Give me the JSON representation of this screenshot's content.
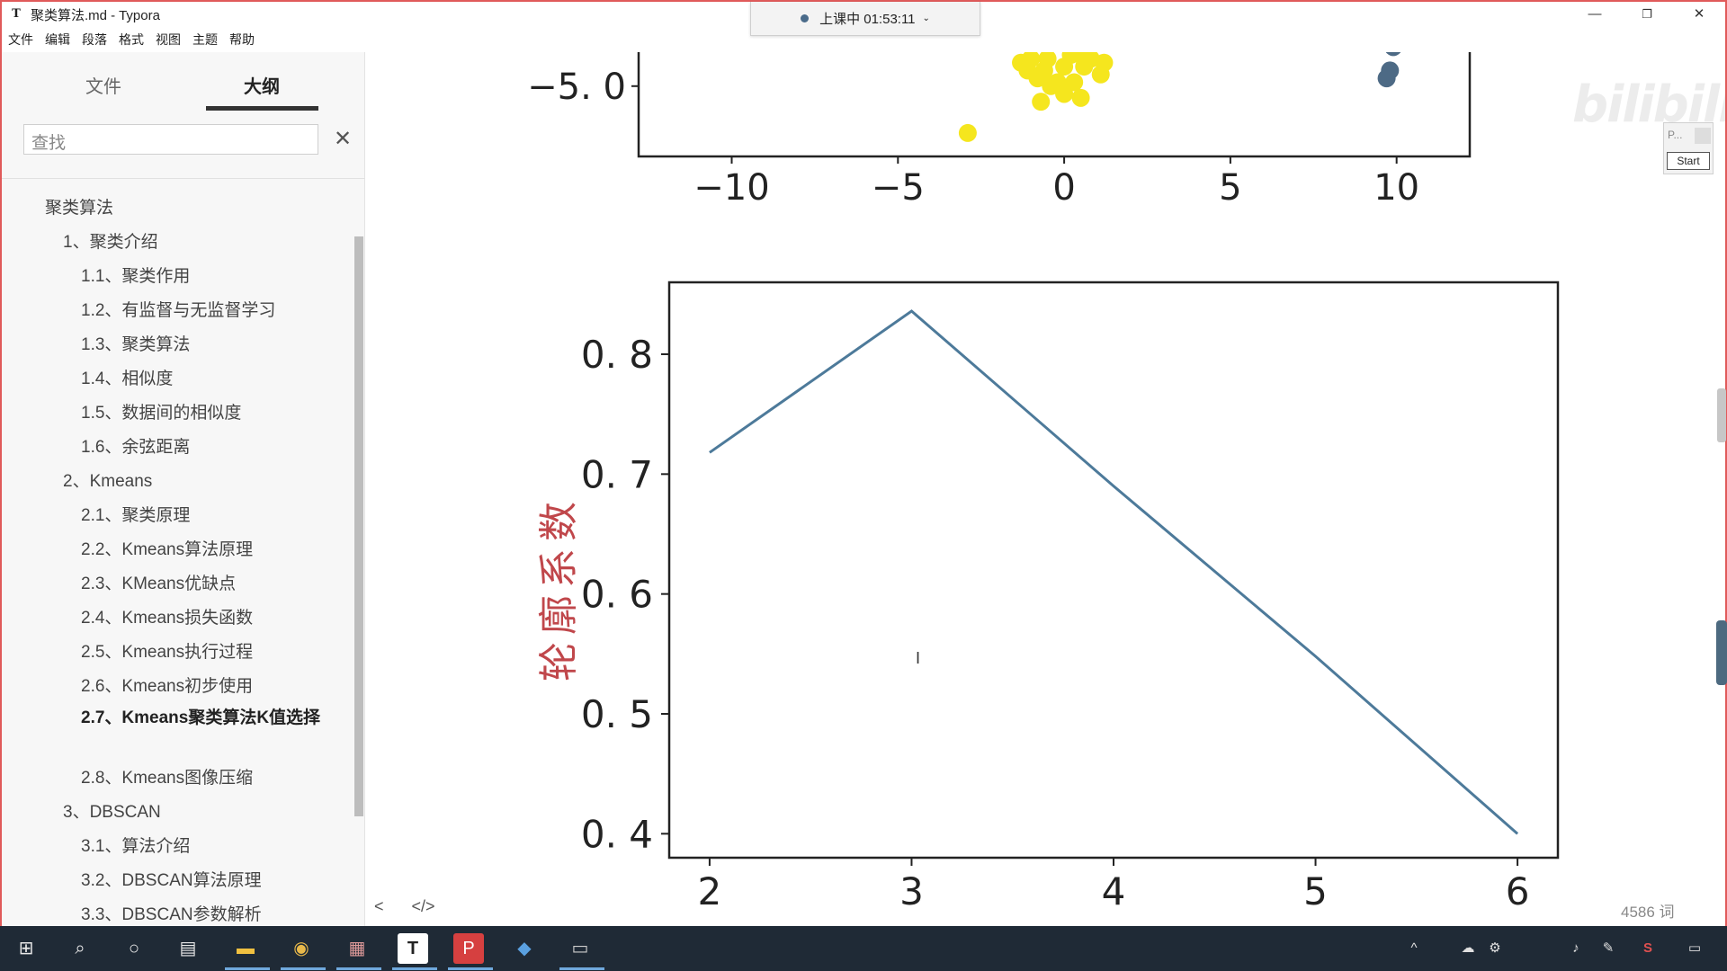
{
  "window": {
    "title": "聚类算法.md - Typora",
    "app_icon": "T",
    "controls": [
      "—",
      "❐",
      "✕"
    ]
  },
  "recording": {
    "label": "上课中 01:53:11"
  },
  "menu": [
    "文件",
    "编辑",
    "段落",
    "格式",
    "视图",
    "主题",
    "帮助"
  ],
  "sidebar": {
    "tabs": [
      "文件",
      "大纲"
    ],
    "active_tab": "大纲",
    "search_placeholder": "查找",
    "outline": [
      {
        "text": "聚类算法",
        "level": 1
      },
      {
        "text": "1、聚类介绍",
        "level": 2
      },
      {
        "text": "1.1、聚类作用",
        "level": 3
      },
      {
        "text": "1.2、有监督与无监督学习",
        "level": 3
      },
      {
        "text": "1.3、聚类算法",
        "level": 3
      },
      {
        "text": "1.4、相似度",
        "level": 3
      },
      {
        "text": "1.5、数据间的相似度",
        "level": 3
      },
      {
        "text": "1.6、余弦距离",
        "level": 3
      },
      {
        "text": "2、Kmeans",
        "level": 2
      },
      {
        "text": "2.1、聚类原理",
        "level": 3
      },
      {
        "text": "2.2、Kmeans算法原理",
        "level": 3
      },
      {
        "text": "2.3、KMeans优缺点",
        "level": 3
      },
      {
        "text": "2.4、Kmeans损失函数",
        "level": 3
      },
      {
        "text": "2.5、Kmeans执行过程",
        "level": 3
      },
      {
        "text": "2.6、Kmeans初步使用",
        "level": 3
      },
      {
        "text": "2.7、Kmeans聚类算法K值选择",
        "level": 3,
        "active": true
      },
      {
        "text": "2.8、Kmeans图像压缩",
        "level": 3
      },
      {
        "text": "3、DBSCAN",
        "level": 2
      },
      {
        "text": "3.1、算法介绍",
        "level": 3
      },
      {
        "text": "3.2、DBSCAN算法原理",
        "level": 3
      },
      {
        "text": "3.3、DBSCAN参数解析",
        "level": 3
      }
    ]
  },
  "editor": {
    "bottom_tools": [
      "<",
      "</>"
    ],
    "word_count": "4586 词",
    "widget": {
      "p_label": "P...",
      "start_label": "Start"
    }
  },
  "chart_data": [
    {
      "type": "scatter",
      "xlabel": "",
      "ylabel": "",
      "x_ticks": [
        "−10",
        "−5",
        "0",
        "5",
        "10"
      ],
      "y_ticks": [
        "−5. 0"
      ],
      "series": [
        {
          "color": "#f5e61e",
          "points": [
            [
              -1.3,
              -4.4
            ],
            [
              -1.0,
              -4.3
            ],
            [
              -0.5,
              -4.3
            ],
            [
              0.2,
              -4.2
            ],
            [
              0.5,
              -4.2
            ],
            [
              0.8,
              -4.3
            ],
            [
              1.2,
              -4.4
            ],
            [
              -1.1,
              -4.6
            ],
            [
              -0.6,
              -4.6
            ],
            [
              0.0,
              -4.5
            ],
            [
              0.6,
              -4.5
            ],
            [
              1.1,
              -4.7
            ],
            [
              -0.8,
              -4.8
            ],
            [
              -0.2,
              -4.9
            ],
            [
              0.3,
              -4.9
            ],
            [
              -0.4,
              -5.0
            ],
            [
              0.0,
              -5.2
            ],
            [
              0.5,
              -5.3
            ],
            [
              -0.7,
              -5.4
            ],
            [
              -2.9,
              -6.2
            ]
          ]
        },
        {
          "color": "#4d6a85",
          "points": [
            [
              9.9,
              -4.0
            ],
            [
              9.7,
              -4.8
            ],
            [
              9.8,
              -4.6
            ]
          ]
        }
      ]
    },
    {
      "type": "line",
      "ylabel": "轮廓系数",
      "x": [
        2,
        3,
        4,
        5,
        6
      ],
      "series": [
        {
          "values": [
            0.718,
            0.836,
            0.69,
            0.548,
            0.4
          ],
          "color": "#4d7a9a"
        }
      ],
      "ylim": [
        0.38,
        0.86
      ],
      "xlim": [
        1.8,
        6.2
      ],
      "y_ticks": [
        "0. 8",
        "0. 7",
        "0. 6",
        "0. 5",
        "0. 4"
      ],
      "x_ticks": [
        "2",
        "3",
        "4",
        "5",
        "6"
      ]
    }
  ],
  "taskbar": {
    "icons": [
      "windows-icon",
      "search-icon",
      "cortana-icon",
      "task-view-icon",
      "file-explorer-icon",
      "chrome-icon",
      "paint-icon",
      "typora-icon",
      "pdf-icon",
      "app-icon",
      "terminal-icon"
    ],
    "tray": [
      "^",
      "☁",
      "⚙",
      "♪",
      "✎",
      "S",
      "▭"
    ]
  }
}
